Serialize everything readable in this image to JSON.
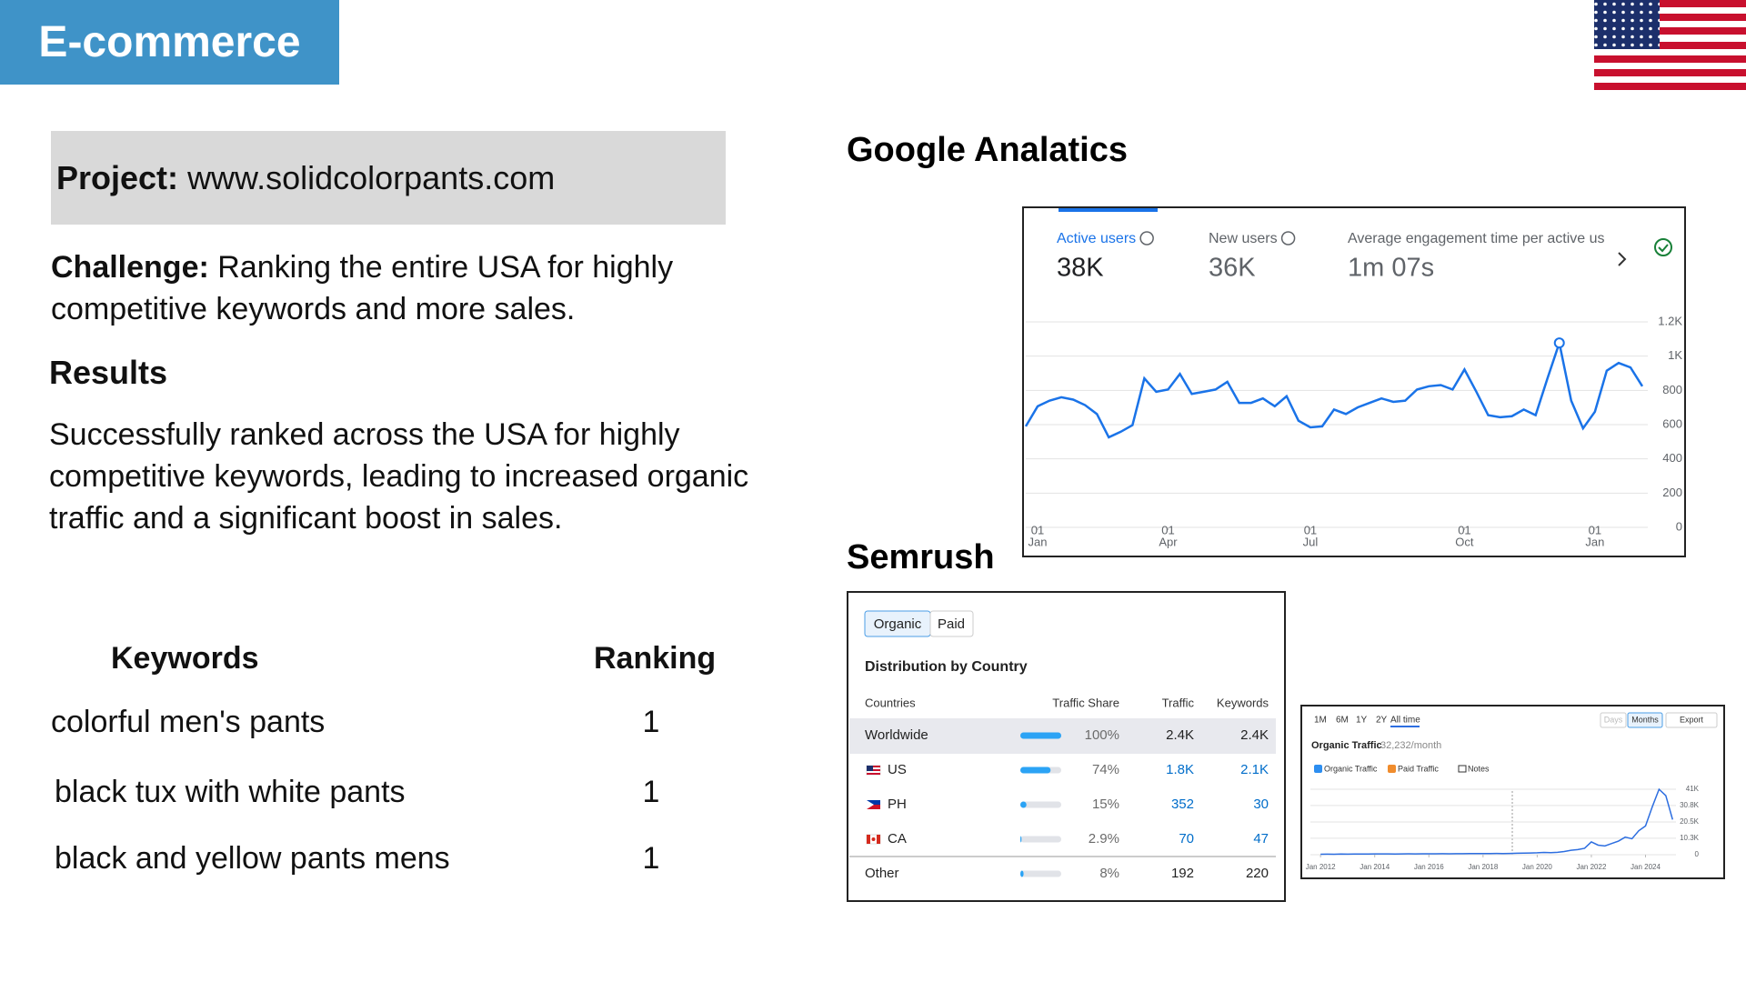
{
  "header": {
    "badge": "E-commerce"
  },
  "project": {
    "label": "Project:",
    "url": "www.solidcolorpants.com"
  },
  "challenge": {
    "label": "Challenge:",
    "text": "Ranking the entire USA for highly competitive keywords and more sales."
  },
  "results": {
    "title": "Results",
    "text": "Successfully ranked across the USA for highly competitive keywords, leading to increased organic traffic and a significant boost in sales."
  },
  "keywords_table": {
    "headers": [
      "Keywords",
      "Ranking"
    ],
    "rows": [
      [
        "colorful men's pants",
        1
      ],
      [
        "black tux with white pants",
        1
      ],
      [
        "black and yellow pants mens",
        1
      ]
    ]
  },
  "google_analytics": {
    "title": "Google Analatics",
    "metrics": [
      {
        "label": "Active users",
        "value": "38K"
      },
      {
        "label": "New users",
        "value": "36K"
      },
      {
        "label": "Average engagement time per active us",
        "value": "1m 07s"
      }
    ],
    "chart_data": {
      "type": "line",
      "color": "#1a73e8",
      "values": [
        590,
        707,
        740,
        760,
        746,
        714,
        662,
        526,
        558,
        597,
        870,
        792,
        805,
        896,
        779,
        792,
        805,
        850,
        727,
        727,
        753,
        707,
        766,
        623,
        584,
        590,
        688,
        662,
        701,
        727,
        753,
        733,
        740,
        805,
        824,
        831,
        805,
        922,
        792,
        655,
        643,
        649,
        688,
        655,
        870,
        1077,
        740,
        578,
        675,
        915,
        960,
        934,
        824
      ],
      "xlim": [
        0,
        52
      ],
      "xticks": [
        {
          "value": 1,
          "label": [
            "01",
            "Jan"
          ]
        },
        {
          "value": 12,
          "label": [
            "01",
            "Apr"
          ]
        },
        {
          "value": 24,
          "label": [
            "01",
            "Jul"
          ]
        },
        {
          "value": 37,
          "label": [
            "01",
            "Oct"
          ]
        },
        {
          "value": 48,
          "label": [
            "01",
            "Jan"
          ]
        }
      ],
      "ylim": [
        0,
        1200
      ],
      "yticks": [
        0,
        200,
        400,
        600,
        800,
        {
          "value": 1000,
          "label": "1K"
        },
        {
          "value": 1200,
          "label": "1.2K"
        }
      ],
      "grid": true
    }
  },
  "semrush": {
    "title": "Semrush",
    "toggle": [
      "Organic",
      "Paid"
    ],
    "table": {
      "title": "Distribution by Country",
      "headers": [
        "Countries",
        "Traffic Share",
        "Traffic",
        "Keywords"
      ],
      "rows": [
        {
          "country": "Worldwide",
          "share": 100,
          "share_label": "100%",
          "traffic": "2.4K",
          "keywords": "2.4K"
        },
        {
          "country": "US",
          "share": 74,
          "share_label": "74%",
          "traffic": "1.8K",
          "keywords": "2.1K"
        },
        {
          "country": "PH",
          "share": 15,
          "share_label": "15%",
          "traffic": "352",
          "keywords": "30"
        },
        {
          "country": "CA",
          "share": 2.9,
          "share_label": "2.9%",
          "traffic": "70",
          "keywords": "47"
        },
        {
          "country": "Other",
          "share": 8,
          "share_label": "8%",
          "traffic": "192",
          "keywords": "220"
        }
      ]
    },
    "traffic_chart": {
      "ranges": [
        "1M",
        "6M",
        "1Y",
        "2Y",
        "All time"
      ],
      "buttons": [
        "Days",
        "Months",
        "Export"
      ],
      "title": "Organic Traffic",
      "subtitle": "32,232/month",
      "legend": [
        "Organic Traffic",
        "Paid Traffic",
        "Notes"
      ],
      "chart_data": {
        "type": "line",
        "color": "#2d6ee0",
        "values": [
          300,
          350,
          320,
          400,
          380,
          420,
          450,
          400,
          500,
          480,
          520,
          460,
          500,
          550,
          520,
          600,
          580,
          560,
          620,
          600,
          650,
          640,
          700,
          680,
          720,
          700,
          760,
          740,
          800,
          900,
          1000,
          1100,
          1200,
          1400,
          1300,
          1500,
          2000,
          2800,
          3200,
          4000,
          8000,
          6000,
          5500,
          7000,
          8500,
          11000,
          10000,
          15000,
          18000,
          30000,
          41000,
          37000,
          22000
        ],
        "xlim": [
          -1.5,
          52.5
        ],
        "xticks": [
          {
            "value": 0,
            "label": "Jan 2012"
          },
          {
            "value": 8,
            "label": "Jan 2014"
          },
          {
            "value": 16,
            "label": "Jan 2016"
          },
          {
            "value": 24,
            "label": "Jan 2018"
          },
          {
            "value": 32,
            "label": "Jan 2020"
          },
          {
            "value": 40,
            "label": "Jan 2022"
          },
          {
            "value": 48,
            "label": "Jan 2024"
          }
        ],
        "ylim": [
          0,
          41000
        ],
        "yticks": [
          0,
          {
            "value": 10300,
            "label": "10.3K"
          },
          {
            "value": 20500,
            "label": "20.5K"
          },
          {
            "value": 30800,
            "label": "30.8K"
          },
          {
            "value": 41000,
            "label": "41K"
          }
        ],
        "grid": true
      }
    }
  }
}
